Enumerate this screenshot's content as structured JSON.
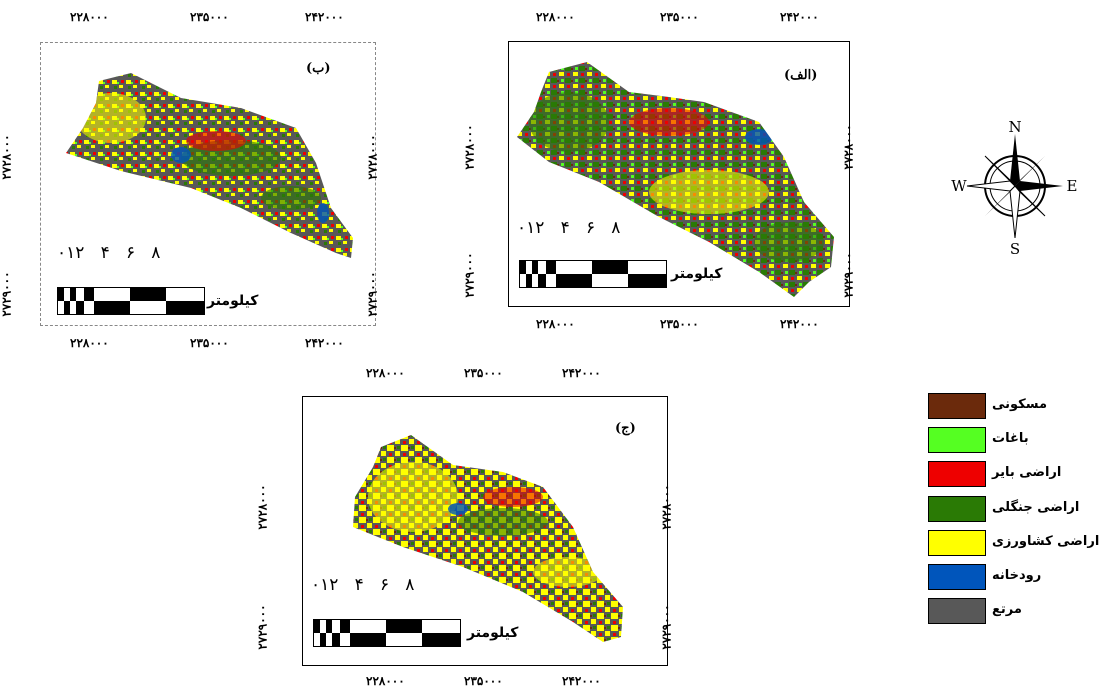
{
  "coords": {
    "x": [
      "۲۲۸۰۰۰",
      "۲۳۵۰۰۰",
      "۲۴۲۰۰۰"
    ],
    "y_top": "۲۷۲۸۰۰۰",
    "y_bottom": "۲۷۲۹۰۰۰"
  },
  "panels": [
    {
      "id": "b",
      "label": "(ب)"
    },
    {
      "id": "alef",
      "label": "(الف)"
    },
    {
      "id": "jim",
      "label": "(ج)"
    }
  ],
  "scale": {
    "numbers": "۰۱۲   ۴   ۶   ۸",
    "unit": "کیلومتر"
  },
  "compass": {
    "n": "N",
    "s": "S",
    "e": "E",
    "w": "W"
  },
  "legend": [
    {
      "label": "مسکونی",
      "color": "#6b2a0c"
    },
    {
      "label": "باغات",
      "color": "#55ff22"
    },
    {
      "label": "اراضی بایر",
      "color": "#ee0000"
    },
    {
      "label": "اراضی جنگلی",
      "color": "#2a7a05"
    },
    {
      "label": "اراضی کشاورزی",
      "color": "#ffff00"
    },
    {
      "label": "رودخانه",
      "color": "#0055bb"
    },
    {
      "label": "مرتع",
      "color": "#585858"
    }
  ]
}
